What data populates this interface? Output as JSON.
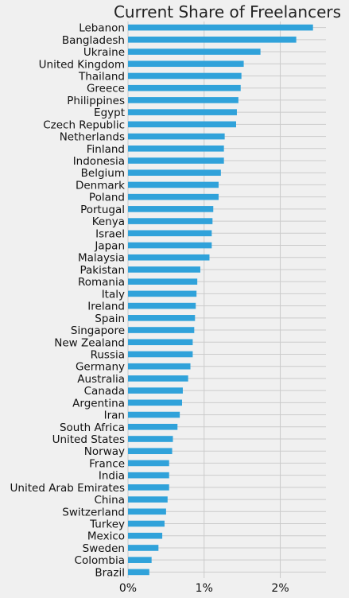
{
  "chart_data": {
    "type": "bar",
    "orientation": "horizontal",
    "title": "Current Share of Freelancers",
    "xlabel": "",
    "ylabel": "",
    "xlim": [
      0,
      2.6
    ],
    "xticks": [
      0,
      1,
      2
    ],
    "xtick_labels": [
      "0%",
      "1%",
      "2%"
    ],
    "grid": true,
    "bar_color": "#30a2da",
    "categories": [
      "Lebanon",
      "Bangladesh",
      "Ukraine",
      "United Kingdom",
      "Thailand",
      "Greece",
      "Philippines",
      "Egypt",
      "Czech Republic",
      "Netherlands",
      "Finland",
      "Indonesia",
      "Belgium",
      "Denmark",
      "Poland",
      "Portugal",
      "Kenya",
      "Israel",
      "Japan",
      "Malaysia",
      "Pakistan",
      "Romania",
      "Italy",
      "Ireland",
      "Spain",
      "Singapore",
      "New Zealand",
      "Russia",
      "Germany",
      "Australia",
      "Canada",
      "Argentina",
      "Iran",
      "South Africa",
      "United States",
      "Norway",
      "France",
      "India",
      "United Arab Emirates",
      "China",
      "Switzerland",
      "Turkey",
      "Mexico",
      "Sweden",
      "Colombia",
      "Brazil"
    ],
    "values": [
      2.43,
      2.21,
      1.74,
      1.52,
      1.49,
      1.48,
      1.45,
      1.43,
      1.42,
      1.27,
      1.26,
      1.26,
      1.22,
      1.19,
      1.19,
      1.12,
      1.11,
      1.1,
      1.1,
      1.07,
      0.95,
      0.91,
      0.9,
      0.89,
      0.88,
      0.87,
      0.85,
      0.85,
      0.82,
      0.79,
      0.72,
      0.71,
      0.68,
      0.65,
      0.59,
      0.58,
      0.54,
      0.54,
      0.54,
      0.52,
      0.5,
      0.48,
      0.45,
      0.4,
      0.31,
      0.28
    ]
  }
}
